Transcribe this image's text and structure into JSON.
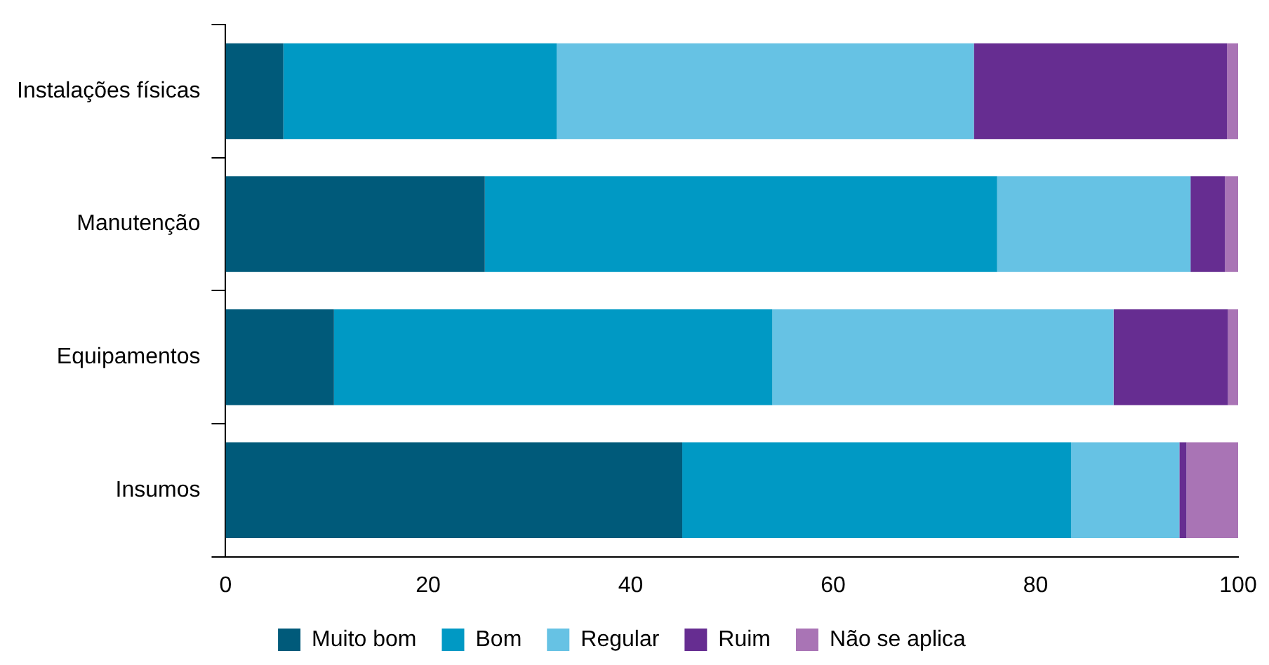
{
  "chart_data": {
    "type": "bar",
    "orientation": "horizontal",
    "stacked": true,
    "categories": [
      "Instalações físicas",
      "Manutenção",
      "Equipamentos",
      "Insumos"
    ],
    "series": [
      {
        "name": "Muito bom",
        "color": "#005a7a",
        "values": [
          5.7,
          25.6,
          10.7,
          45.1
        ]
      },
      {
        "name": "Bom",
        "color": "#0099c4",
        "values": [
          27.0,
          50.6,
          43.3,
          38.4
        ]
      },
      {
        "name": "Regular",
        "color": "#66c2e4",
        "values": [
          41.2,
          19.1,
          33.7,
          10.7
        ]
      },
      {
        "name": "Ruim",
        "color": "#662d91",
        "values": [
          25.0,
          3.4,
          11.3,
          0.7
        ]
      },
      {
        "name": "Não se aplica",
        "color": "#a974b5",
        "values": [
          1.1,
          1.3,
          1.0,
          5.1
        ]
      }
    ],
    "xlim": [
      0,
      100
    ],
    "xticks": [
      0,
      20,
      40,
      60,
      80,
      100
    ],
    "grid": false,
    "legend": "bottom"
  }
}
